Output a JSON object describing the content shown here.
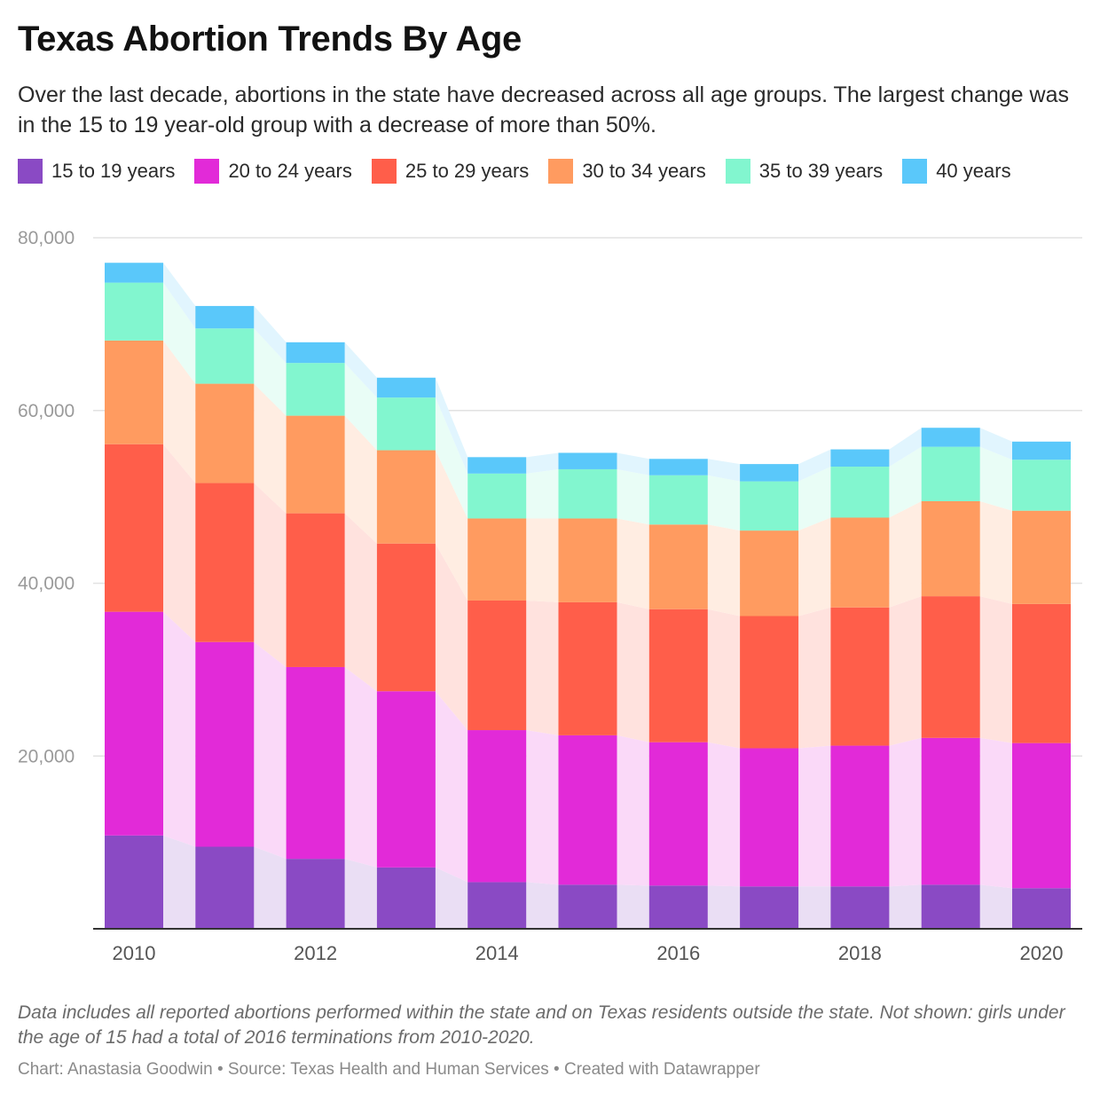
{
  "title": "Texas Abortion Trends By Age",
  "subtitle": "Over the last decade, abortions in the state have decreased across all age groups. The largest change was in the 15 to 19 year-old group with a decrease of more than 50%.",
  "notes": "Data includes all reported abortions performed within the state and on Texas residents outside the state. Not shown: girls under the age of 15 had a total of 2016 terminations from 2010-2020.",
  "credits": "Chart: Anastasia Goodwin • Source: Texas Health and Human Services • Created with Datawrapper",
  "chart_data": {
    "type": "bar",
    "stacked": true,
    "categories": [
      "2010",
      "2011",
      "2012",
      "2013",
      "2014",
      "2015",
      "2016",
      "2017",
      "2018",
      "2019",
      "2020"
    ],
    "x_tick_labels": [
      "2010",
      "2012",
      "2014",
      "2016",
      "2018",
      "2020"
    ],
    "y_ticks": [
      20000,
      40000,
      60000,
      80000
    ],
    "y_tick_labels": [
      "20,000",
      "40,000",
      "60,000",
      "80,000"
    ],
    "ylim": [
      0,
      80000
    ],
    "grid": true,
    "legend_position": "top-left",
    "series": [
      {
        "name": "15 to 19 years",
        "color": "#8a4ac4",
        "values": [
          10800,
          9500,
          8100,
          7100,
          5400,
          5100,
          5000,
          4900,
          4900,
          5100,
          4700
        ]
      },
      {
        "name": "20 to 24 years",
        "color": "#e22ad8",
        "values": [
          25900,
          23700,
          22200,
          20400,
          17600,
          17300,
          16600,
          16000,
          16300,
          17000,
          16800
        ]
      },
      {
        "name": "25 to 29 years",
        "color": "#ff5e4a",
        "values": [
          19400,
          18400,
          17800,
          17100,
          15000,
          15400,
          15400,
          15300,
          16000,
          16400,
          16100
        ]
      },
      {
        "name": "30 to 34 years",
        "color": "#ff9b60",
        "values": [
          12000,
          11500,
          11300,
          10800,
          9500,
          9700,
          9800,
          9900,
          10400,
          11000,
          10800
        ]
      },
      {
        "name": "35 to 39 years",
        "color": "#82f6cf",
        "values": [
          6700,
          6400,
          6100,
          6100,
          5200,
          5700,
          5700,
          5700,
          5900,
          6300,
          5900
        ]
      },
      {
        "name": "40 years",
        "color": "#5ac8fa",
        "values": [
          2300,
          2600,
          2400,
          2300,
          1900,
          1900,
          1900,
          2000,
          2000,
          2200,
          2100
        ]
      }
    ]
  }
}
